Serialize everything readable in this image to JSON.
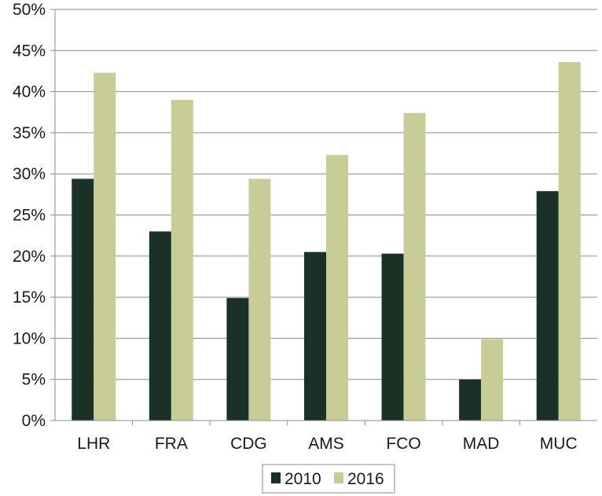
{
  "chart_data": {
    "type": "bar",
    "categories": [
      "LHR",
      "FRA",
      "CDG",
      "AMS",
      "FCO",
      "MAD",
      "MUC"
    ],
    "series": [
      {
        "name": "2010",
        "color": "#1b3026",
        "values": [
          29.4,
          23.0,
          14.9,
          20.5,
          20.3,
          5.0,
          27.9
        ]
      },
      {
        "name": "2016",
        "color": "#c8cc96",
        "values": [
          42.3,
          39.0,
          29.4,
          32.3,
          37.4,
          9.9,
          43.6
        ]
      }
    ],
    "ylim": [
      0,
      50
    ],
    "yticks": [
      "0%",
      "5%",
      "10%",
      "15%",
      "20%",
      "25%",
      "30%",
      "35%",
      "40%",
      "45%",
      "50%"
    ],
    "ytick_values": [
      0,
      5,
      10,
      15,
      20,
      25,
      30,
      35,
      40,
      45,
      50
    ],
    "grid": true,
    "legend_position": "bottom",
    "title": "",
    "xlabel": "",
    "ylabel": ""
  }
}
